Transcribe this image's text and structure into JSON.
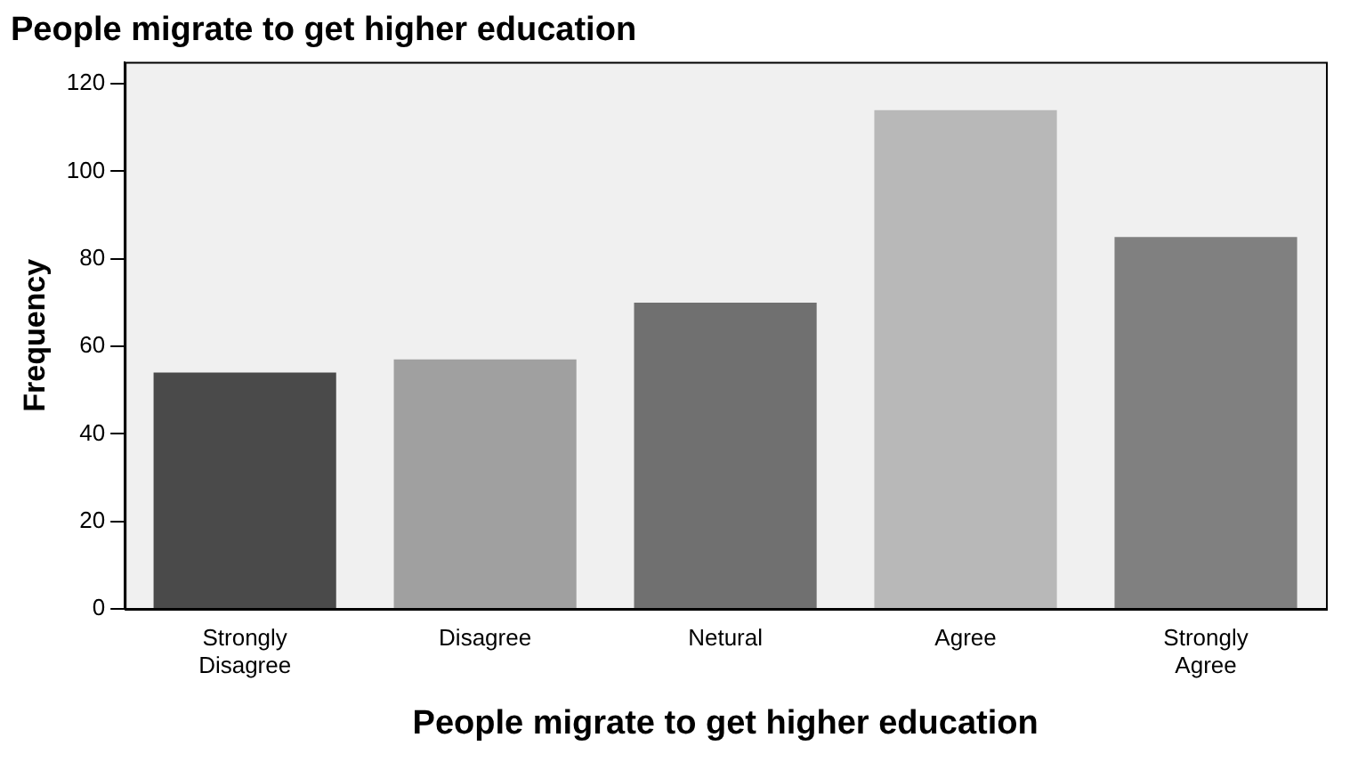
{
  "chart_data": {
    "type": "bar",
    "title": "People migrate to get higher education",
    "xlabel": "People migrate to get higher education",
    "ylabel": "Frequency",
    "categories": [
      "Strongly Disagree",
      "Disagree",
      "Netural",
      "Agree",
      "Strongly Agree"
    ],
    "values": [
      54,
      57,
      70,
      114,
      85
    ],
    "colors": [
      "#4a4a4a",
      "#a0a0a0",
      "#707070",
      "#b8b8b8",
      "#808080"
    ],
    "ylim": [
      0,
      125
    ],
    "yticks": [
      0,
      20,
      40,
      60,
      80,
      100,
      120
    ],
    "grid": false,
    "legend": false
  }
}
